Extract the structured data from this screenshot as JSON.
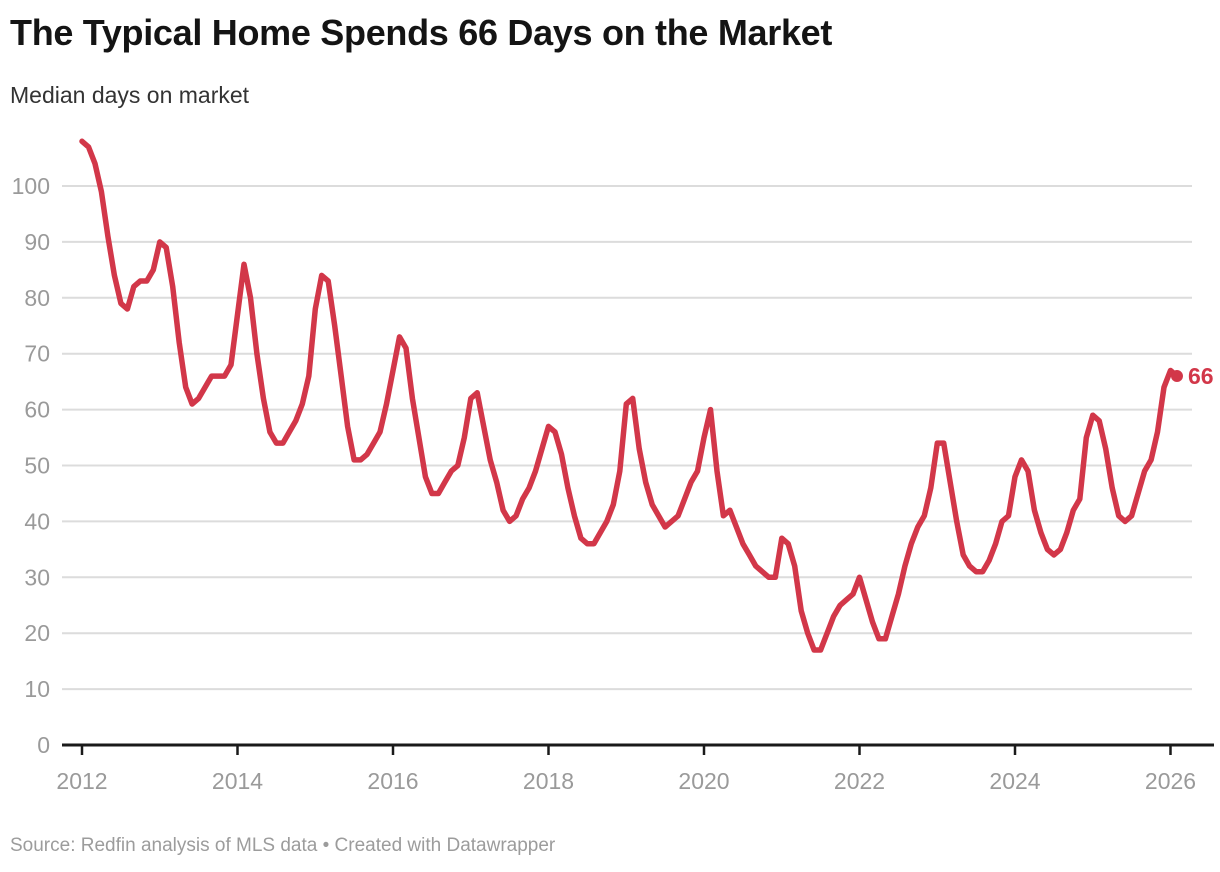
{
  "header": {
    "title": "The Typical Home Spends 66 Days on the Market",
    "subtitle": "Median days on market"
  },
  "footer": {
    "source": "Source: Redfin analysis of MLS data • Created with Datawrapper"
  },
  "chart_data": {
    "type": "line",
    "title": "The Typical Home Spends 66 Days on the Market",
    "x_start": "2012-01",
    "x_end": "2026-02",
    "interval": "monthly",
    "series": [
      {
        "name": "Median days on market",
        "values": [
          108,
          107,
          104,
          99,
          91,
          84,
          79,
          78,
          82,
          83,
          83,
          85,
          90,
          89,
          82,
          72,
          64,
          61,
          62,
          64,
          66,
          66,
          66,
          68,
          77,
          86,
          80,
          70,
          62,
          56,
          54,
          54,
          56,
          58,
          61,
          66,
          78,
          84,
          83,
          75,
          66,
          57,
          51,
          51,
          52,
          54,
          56,
          61,
          67,
          73,
          71,
          62,
          55,
          48,
          45,
          45,
          47,
          49,
          50,
          55,
          62,
          63,
          57,
          51,
          47,
          42,
          40,
          41,
          44,
          46,
          49,
          53,
          57,
          56,
          52,
          46,
          41,
          37,
          36,
          36,
          38,
          40,
          43,
          49,
          61,
          62,
          53,
          47,
          43,
          41,
          39,
          40,
          41,
          44,
          47,
          49,
          55,
          60,
          49,
          41,
          42,
          39,
          36,
          34,
          32,
          31,
          30,
          30,
          37,
          36,
          32,
          24,
          20,
          17,
          17,
          20,
          23,
          25,
          26,
          27,
          30,
          26,
          22,
          19,
          19,
          23,
          27,
          32,
          36,
          39,
          41,
          46,
          54,
          54,
          47,
          40,
          34,
          32,
          31,
          31,
          33,
          36,
          40,
          41,
          48,
          51,
          49,
          42,
          38,
          35,
          34,
          35,
          38,
          42,
          44,
          55,
          59,
          58,
          53,
          46,
          41,
          40,
          41,
          45,
          49,
          51,
          56,
          64,
          67,
          66
        ]
      }
    ],
    "x_tick_years": [
      2012,
      2014,
      2016,
      2018,
      2020,
      2022,
      2024,
      2026
    ],
    "y_ticks": [
      0,
      10,
      20,
      30,
      40,
      50,
      60,
      70,
      80,
      90,
      100
    ],
    "ylim": [
      0,
      110
    ],
    "grid": "horizontal",
    "legend": "none",
    "end_label": "66",
    "colors": {
      "line": "#d23749",
      "axis_text": "#9a9a9a",
      "gridline": "#dcdcdc",
      "baseline": "#1a1a1a",
      "title": "#141414",
      "subtitle": "#333333",
      "source": "#9c9c9c"
    }
  }
}
